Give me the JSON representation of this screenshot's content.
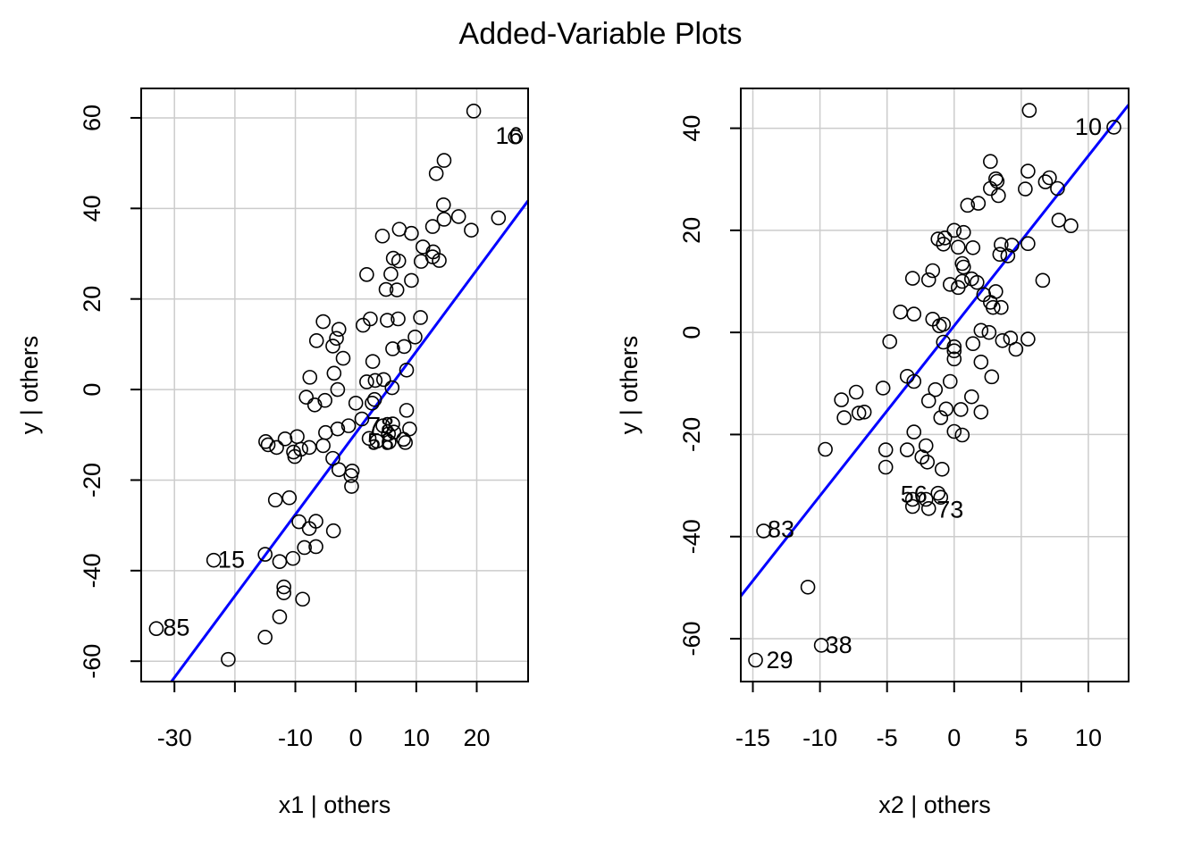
{
  "figure": {
    "title": "Added-Variable Plots"
  },
  "chart_data": [
    {
      "type": "scatter",
      "xlabel": "x1 | others",
      "ylabel": "y  | others",
      "xlim": [
        -35.5,
        28.5
      ],
      "ylim": [
        -64.5,
        66.5
      ],
      "xticks": [
        -30,
        -10,
        0,
        10,
        20
      ],
      "xtick_labels": [
        "-30",
        "-10",
        "0",
        "10",
        "20"
      ],
      "xgrid": [
        -30,
        -20,
        -10,
        0,
        10,
        20
      ],
      "yticks": [
        -60,
        -40,
        -20,
        0,
        20,
        40,
        60
      ],
      "ytick_labels": [
        "-60",
        "-40",
        "-20",
        "0",
        "20",
        "40",
        "60"
      ],
      "grid": true,
      "fit_line": {
        "slope": 1.8,
        "intercept": -9.6
      },
      "labels": [
        {
          "text": "16",
          "x": 23.1,
          "y": 56
        },
        {
          "text": "15",
          "x": -22.8,
          "y": -37.6
        },
        {
          "text": "85",
          "x": -31.9,
          "y": -52.6
        },
        {
          "text": "78",
          "x": 1.9,
          "y": -8
        },
        {
          "text": "58",
          "x": 1.9,
          "y": -11.5
        }
      ],
      "points": [
        [
          19.5,
          61.5
        ],
        [
          26.4,
          55.8
        ],
        [
          14.6,
          50.6
        ],
        [
          13.3,
          47.7
        ],
        [
          14.5,
          40.8
        ],
        [
          23.6,
          37.9
        ],
        [
          17.0,
          38.2
        ],
        [
          14.6,
          37.6
        ],
        [
          12.7,
          36.0
        ],
        [
          19.1,
          35.2
        ],
        [
          7.2,
          35.4
        ],
        [
          9.2,
          34.5
        ],
        [
          4.4,
          33.9
        ],
        [
          11.1,
          31.5
        ],
        [
          12.8,
          30.4
        ],
        [
          6.2,
          29.0
        ],
        [
          12.7,
          29.3
        ],
        [
          7.1,
          28.4
        ],
        [
          10.8,
          28.3
        ],
        [
          13.8,
          28.5
        ],
        [
          5.8,
          25.5
        ],
        [
          1.8,
          25.4
        ],
        [
          9.2,
          24.1
        ],
        [
          5.0,
          22.1
        ],
        [
          6.8,
          22.0
        ],
        [
          2.4,
          15.6
        ],
        [
          5.2,
          15.3
        ],
        [
          7.0,
          15.6
        ],
        [
          10.7,
          15.9
        ],
        [
          -5.4,
          15.0
        ],
        [
          1.2,
          14.2
        ],
        [
          -2.8,
          13.3
        ],
        [
          -3.2,
          11.3
        ],
        [
          -6.5,
          10.8
        ],
        [
          -3.8,
          9.6
        ],
        [
          8.0,
          9.5
        ],
        [
          6.1,
          9.0
        ],
        [
          9.8,
          11.6
        ],
        [
          -2.1,
          6.9
        ],
        [
          2.8,
          6.2
        ],
        [
          8.4,
          4.3
        ],
        [
          -3.6,
          3.6
        ],
        [
          -7.6,
          2.7
        ],
        [
          4.6,
          2.2
        ],
        [
          1.8,
          1.7
        ],
        [
          3.2,
          2.0
        ],
        [
          6.0,
          0.4
        ],
        [
          -3.0,
          0.0
        ],
        [
          -8.2,
          -1.7
        ],
        [
          -5.1,
          -2.4
        ],
        [
          -6.8,
          -3.4
        ],
        [
          3.1,
          -2.2
        ],
        [
          0.0,
          -3.0
        ],
        [
          2.7,
          -3.0
        ],
        [
          8.4,
          -4.6
        ],
        [
          1.0,
          -6.5
        ],
        [
          -14.9,
          -11.5
        ],
        [
          -14.5,
          -12.2
        ],
        [
          -13.1,
          -12.8
        ],
        [
          -11.7,
          -10.9
        ],
        [
          -9.7,
          -10.4
        ],
        [
          -7.7,
          -12.8
        ],
        [
          -5.4,
          -12.4
        ],
        [
          -5.0,
          -9.5
        ],
        [
          -3.0,
          -8.7
        ],
        [
          -1.2,
          -8.0
        ],
        [
          -10.3,
          -13.8
        ],
        [
          -10.1,
          -14.8
        ],
        [
          -9.1,
          -13.2
        ],
        [
          -3.8,
          -15.2
        ],
        [
          -2.8,
          -17.7
        ],
        [
          -0.6,
          -18.0
        ],
        [
          -0.8,
          -19.0
        ],
        [
          -0.7,
          -21.4
        ],
        [
          -13.3,
          -24.4
        ],
        [
          -11.0,
          -23.9
        ],
        [
          -9.4,
          -29.2
        ],
        [
          -6.6,
          -29.1
        ],
        [
          -7.7,
          -30.7
        ],
        [
          -3.7,
          -31.2
        ],
        [
          -6.6,
          -34.7
        ],
        [
          -8.5,
          -34.9
        ],
        [
          -15.0,
          -36.4
        ],
        [
          -12.6,
          -38.0
        ],
        [
          -10.4,
          -37.3
        ],
        [
          -11.9,
          -43.6
        ],
        [
          -11.9,
          -44.9
        ],
        [
          -8.8,
          -46.3
        ],
        [
          -12.6,
          -50.2
        ],
        [
          -15.0,
          -54.7
        ],
        [
          -33.0,
          -52.8
        ],
        [
          -23.5,
          -37.7
        ],
        [
          -21.1,
          -59.6
        ],
        [
          4.5,
          -8.0
        ],
        [
          6.1,
          -7.6
        ],
        [
          6.3,
          -9.4
        ],
        [
          7.9,
          -11.0
        ],
        [
          8.9,
          -8.7
        ],
        [
          5.4,
          -9.8
        ],
        [
          5.5,
          -11.6
        ],
        [
          3.5,
          -11.4
        ],
        [
          2.2,
          -10.8
        ],
        [
          8.2,
          -11.7
        ]
      ]
    },
    {
      "type": "scatter",
      "xlabel": "x2 | others",
      "ylabel": "y  | others",
      "xlim": [
        -15.9,
        13.0
      ],
      "ylim": [
        -68.4,
        47.8
      ],
      "xticks": [
        -15,
        -10,
        -5,
        0,
        5,
        10
      ],
      "xtick_labels": [
        "-15",
        "-10",
        "-5",
        "0",
        "5",
        "10"
      ],
      "yticks": [
        -60,
        -40,
        -20,
        0,
        20,
        40
      ],
      "ytick_labels": [
        "-60",
        "-40",
        "-20",
        "0",
        "20",
        "40"
      ],
      "grid": true,
      "fit_line": {
        "slope": 3.33,
        "intercept": 1.3
      },
      "labels": [
        {
          "text": "10",
          "x": 9.0,
          "y": 40.3
        },
        {
          "text": "83",
          "x": -13.9,
          "y": -38.6
        },
        {
          "text": "38",
          "x": -9.6,
          "y": -61.2
        },
        {
          "text": "29",
          "x": -14.0,
          "y": -64.2
        },
        {
          "text": "56",
          "x": -4.0,
          "y": -31.7
        },
        {
          "text": "73",
          "x": -1.3,
          "y": -34.7
        }
      ],
      "points": [
        [
          5.6,
          43.5
        ],
        [
          11.9,
          40.2
        ],
        [
          2.7,
          33.5
        ],
        [
          5.5,
          31.6
        ],
        [
          7.1,
          30.3
        ],
        [
          3.1,
          30.1
        ],
        [
          3.2,
          29.6
        ],
        [
          6.8,
          29.5
        ],
        [
          7.7,
          28.2
        ],
        [
          5.3,
          28.1
        ],
        [
          2.7,
          28.2
        ],
        [
          3.3,
          26.8
        ],
        [
          1.0,
          24.9
        ],
        [
          1.8,
          25.3
        ],
        [
          7.8,
          22.0
        ],
        [
          8.7,
          20.9
        ],
        [
          0.0,
          20.0
        ],
        [
          0.7,
          19.6
        ],
        [
          -1.2,
          18.3
        ],
        [
          -0.7,
          18.5
        ],
        [
          -0.8,
          17.3
        ],
        [
          0.3,
          16.7
        ],
        [
          1.4,
          16.6
        ],
        [
          3.5,
          17.2
        ],
        [
          4.3,
          17.1
        ],
        [
          5.5,
          17.4
        ],
        [
          3.4,
          15.3
        ],
        [
          4.0,
          15.0
        ],
        [
          0.6,
          13.5
        ],
        [
          0.7,
          12.8
        ],
        [
          -1.6,
          12.1
        ],
        [
          -3.1,
          10.6
        ],
        [
          -1.9,
          10.3
        ],
        [
          1.3,
          10.5
        ],
        [
          1.7,
          9.8
        ],
        [
          0.6,
          10.0
        ],
        [
          -0.3,
          9.4
        ],
        [
          0.3,
          8.8
        ],
        [
          3.1,
          8.0
        ],
        [
          6.6,
          10.2
        ],
        [
          2.2,
          7.4
        ],
        [
          2.7,
          5.9
        ],
        [
          2.9,
          4.9
        ],
        [
          3.5,
          4.9
        ],
        [
          -4.0,
          4.0
        ],
        [
          -3.0,
          3.6
        ],
        [
          -1.6,
          2.6
        ],
        [
          -1.1,
          1.3
        ],
        [
          -0.8,
          1.6
        ],
        [
          2.0,
          0.4
        ],
        [
          2.6,
          0.0
        ],
        [
          3.6,
          -1.6
        ],
        [
          4.2,
          -1.1
        ],
        [
          5.5,
          -1.3
        ],
        [
          4.6,
          -3.3
        ],
        [
          -0.8,
          -1.9
        ],
        [
          0.0,
          -2.8
        ],
        [
          0.0,
          -3.6
        ],
        [
          1.4,
          -2.2
        ],
        [
          0.0,
          -5.2
        ],
        [
          -4.8,
          -1.8
        ],
        [
          2.0,
          -5.8
        ],
        [
          -3.5,
          -8.6
        ],
        [
          -3.0,
          -9.6
        ],
        [
          2.8,
          -8.7
        ],
        [
          -0.3,
          -9.6
        ],
        [
          -1.4,
          -11.2
        ],
        [
          -5.3,
          -10.9
        ],
        [
          -7.3,
          -11.7
        ],
        [
          -8.4,
          -13.2
        ],
        [
          -8.2,
          -16.7
        ],
        [
          -7.1,
          -15.8
        ],
        [
          -6.7,
          -15.6
        ],
        [
          -1.9,
          -13.4
        ],
        [
          0.5,
          -15.1
        ],
        [
          -0.6,
          -15.0
        ],
        [
          -1.0,
          -16.7
        ],
        [
          1.3,
          -12.6
        ],
        [
          2.0,
          -15.6
        ],
        [
          -3.0,
          -19.5
        ],
        [
          -2.1,
          -22.2
        ],
        [
          0.0,
          -19.4
        ],
        [
          0.6,
          -20.1
        ],
        [
          -3.5,
          -23.0
        ],
        [
          -5.1,
          -23.0
        ],
        [
          -2.4,
          -24.4
        ],
        [
          -2.0,
          -25.4
        ],
        [
          -5.1,
          -26.4
        ],
        [
          -0.9,
          -26.8
        ],
        [
          -9.6,
          -22.9
        ],
        [
          -1.2,
          -31.5
        ],
        [
          -3.1,
          -32.7
        ],
        [
          -2.1,
          -32.7
        ],
        [
          -3.1,
          -34.1
        ],
        [
          -1.0,
          -32.3
        ],
        [
          -1.9,
          -34.5
        ],
        [
          -14.2,
          -38.9
        ],
        [
          -10.9,
          -49.9
        ],
        [
          -9.9,
          -61.3
        ],
        [
          -14.8,
          -64.2
        ]
      ]
    }
  ]
}
